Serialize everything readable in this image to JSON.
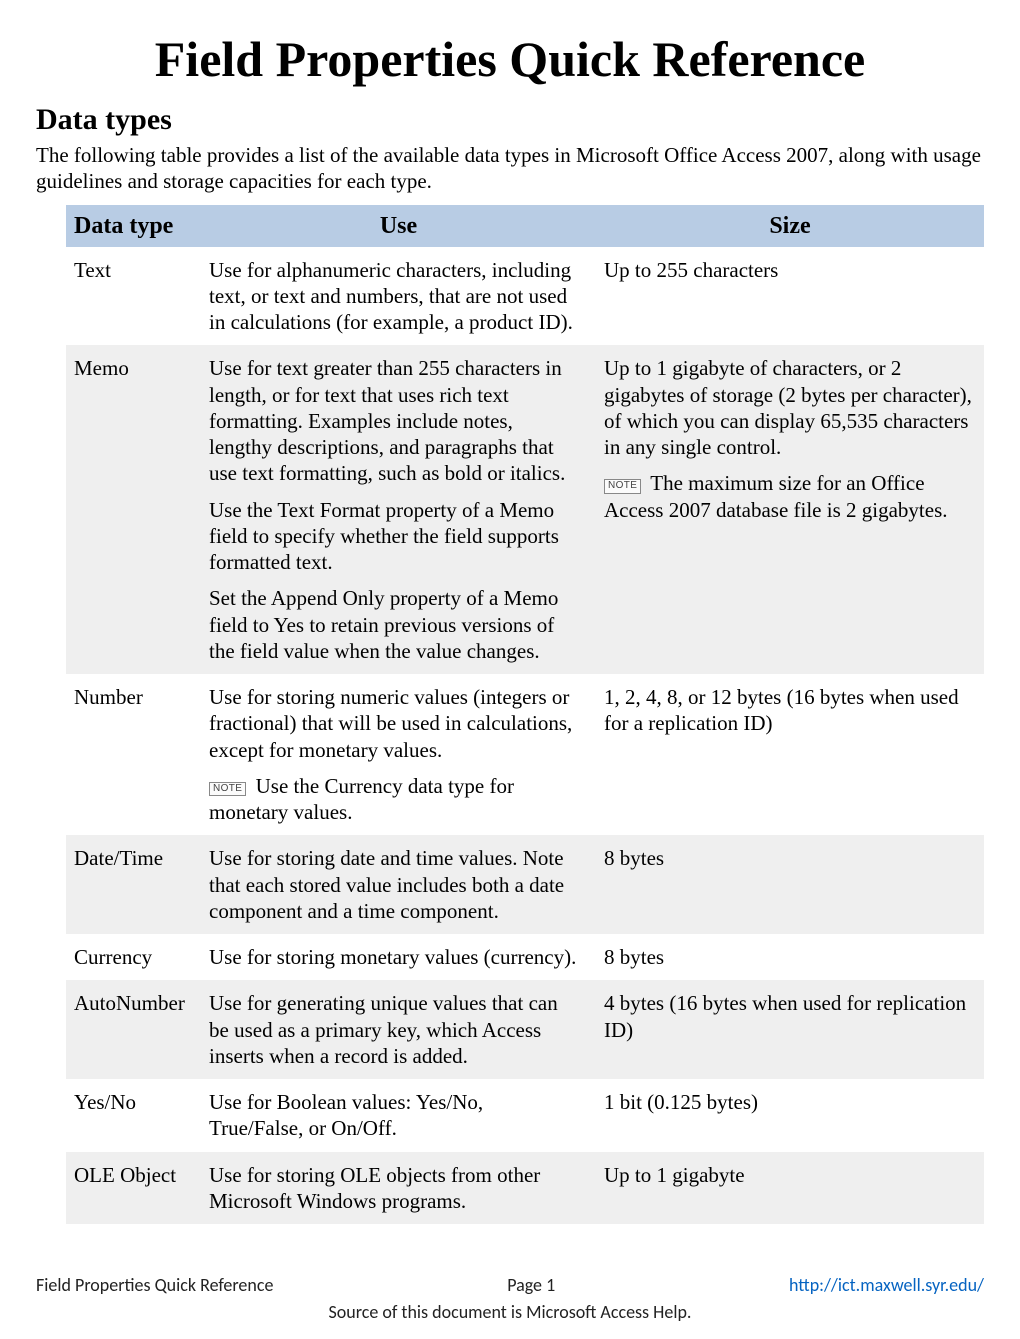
{
  "title": "Field Properties Quick Reference",
  "section_heading": "Data types",
  "intro": "The following table provides a list of the available data types in Microsoft Office Access 2007, along with usage guidelines and storage capacities for each type.",
  "note_label": "NOTE",
  "table": {
    "header_bg": "#b8cce4",
    "alt_row_bg": "#efefef",
    "columns": [
      "Data type",
      "Use",
      "Size"
    ],
    "rows": [
      {
        "type": "Text",
        "use": [
          {
            "text": "Use for alphanumeric characters, including text, or text and numbers, that are not used in calculations (for example, a product ID)."
          }
        ],
        "size": [
          {
            "text": "Up to 255 characters"
          }
        ]
      },
      {
        "type": "Memo",
        "alt": true,
        "use": [
          {
            "text": "Use for text greater than 255 characters in length, or for text that uses rich text formatting. Examples include notes, lengthy descriptions, and paragraphs that use text formatting, such as bold or italics."
          },
          {
            "text": "Use the Text Format property of a Memo field to specify whether the field supports formatted text."
          },
          {
            "text": "Set the Append Only property of a Memo field to Yes to retain previous versions of the field value when the value changes."
          }
        ],
        "size": [
          {
            "text": "Up to 1 gigabyte of characters, or 2 gigabytes of storage (2 bytes per character), of which you can display 65,535 characters in any single control."
          },
          {
            "note": true,
            "text": "The maximum size for an Office Access 2007 database file is 2 gigabytes."
          }
        ]
      },
      {
        "type": "Number",
        "use": [
          {
            "text": "Use for storing numeric values (integers or fractional) that will be used in calculations, except for monetary values."
          },
          {
            "note": true,
            "text": "Use the Currency data type for monetary values."
          }
        ],
        "size": [
          {
            "text": "1, 2, 4, 8, or 12 bytes (16 bytes when used for a replication ID)"
          }
        ]
      },
      {
        "type": "Date/Time",
        "alt": true,
        "use": [
          {
            "text": "Use for storing date and time values. Note that each stored value includes both a date component and a time component."
          }
        ],
        "size": [
          {
            "text": "8 bytes"
          }
        ]
      },
      {
        "type": "Currency",
        "use": [
          {
            "text": "Use for storing monetary values (currency)."
          }
        ],
        "size": [
          {
            "text": "8 bytes"
          }
        ]
      },
      {
        "type": "AutoNumber",
        "alt": true,
        "use": [
          {
            "text": "Use for generating unique values that can be used as a primary key, which Access inserts when a record is added."
          }
        ],
        "size": [
          {
            "text": "4 bytes (16 bytes when used for replication ID)"
          }
        ]
      },
      {
        "type": "Yes/No",
        "use": [
          {
            "text": "Use for Boolean values: Yes/No, True/False, or On/Off."
          }
        ],
        "size": [
          {
            "text": "1 bit (0.125 bytes)"
          }
        ]
      },
      {
        "type": "OLE Object",
        "alt": true,
        "use": [
          {
            "text": "Use for storing OLE objects from other Microsoft Windows programs."
          }
        ],
        "size": [
          {
            "text": "Up to 1 gigabyte"
          }
        ]
      }
    ]
  },
  "footer": {
    "left": "Field Properties Quick Reference",
    "center": "Page 1",
    "link": "http://ict.maxwell.syr.edu/",
    "source": "Source of this document is Microsoft Access Help."
  }
}
